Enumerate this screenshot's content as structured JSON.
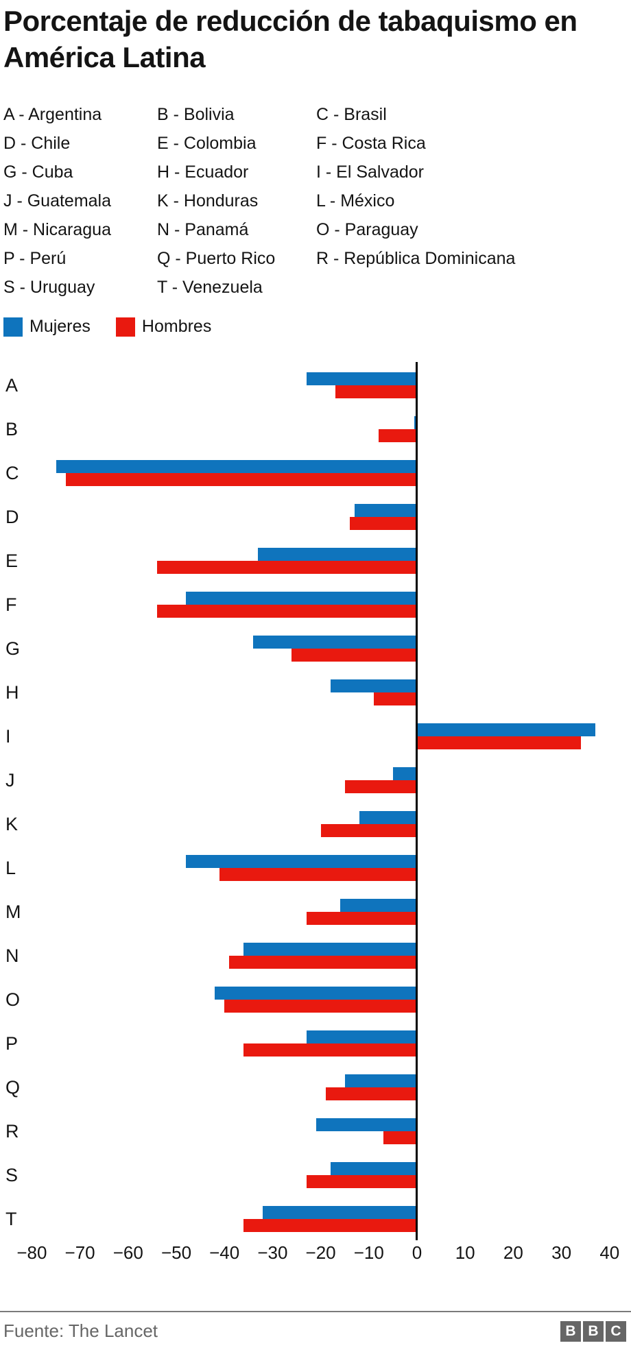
{
  "title": "Porcentaje de reducción de tabaquismo en América Latina",
  "country_key": {
    "items": [
      "A - Argentina",
      "B - Bolivia",
      "C - Brasil",
      "D - Chile",
      "E - Colombia",
      "F - Costa Rica",
      "G - Cuba",
      "H - Ecuador",
      "I - El Salvador",
      "J - Guatemala",
      "K - Honduras",
      "L - México",
      "M - Nicaragua",
      "N - Panamá",
      "O - Paraguay",
      "P - Perú",
      "Q - Puerto Rico",
      "R - República Dominicana",
      "S - Uruguay",
      "T - Venezuela"
    ]
  },
  "legend": {
    "items": [
      {
        "label": "Mujeres",
        "color": "#0f74bd"
      },
      {
        "label": "Hombres",
        "color": "#e9190f"
      }
    ]
  },
  "chart_data": {
    "type": "bar",
    "orientation": "horizontal",
    "title": "Porcentaje de reducción de tabaquismo en América Latina",
    "categories": [
      "A",
      "B",
      "C",
      "D",
      "E",
      "F",
      "G",
      "H",
      "I",
      "J",
      "K",
      "L",
      "M",
      "N",
      "O",
      "P",
      "Q",
      "R",
      "S",
      "T"
    ],
    "series": [
      {
        "name": "Mujeres",
        "color": "#0f74bd",
        "values": [
          -23,
          -0.5,
          -75,
          -13,
          -33,
          -48,
          -34,
          -18,
          37,
          -5,
          -12,
          -48,
          -16,
          -36,
          -42,
          -23,
          -15,
          -21,
          -18,
          -32
        ]
      },
      {
        "name": "Hombres",
        "color": "#e9190f",
        "values": [
          -17,
          -8,
          -73,
          -14,
          -54,
          -54,
          -26,
          -9,
          34,
          -15,
          -20,
          -41,
          -23,
          -39,
          -40,
          -36,
          -19,
          -7,
          -23,
          -36
        ]
      }
    ],
    "xlim": [
      -80,
      40
    ],
    "xtick_values": [
      -80,
      -70,
      -60,
      -50,
      -40,
      -30,
      -20,
      -10,
      0,
      10,
      20,
      30,
      40
    ],
    "xtick_labels": [
      "−80",
      "−70",
      "−60",
      "−50",
      "−40",
      "−30",
      "−20",
      "−10",
      "0",
      "10",
      "20",
      "30",
      "40"
    ],
    "grid": false,
    "legend_position": "top",
    "axis_color": "#000000"
  },
  "footer": {
    "source": "Fuente: The Lancet",
    "logo": {
      "letters": [
        "B",
        "B",
        "C"
      ]
    }
  }
}
